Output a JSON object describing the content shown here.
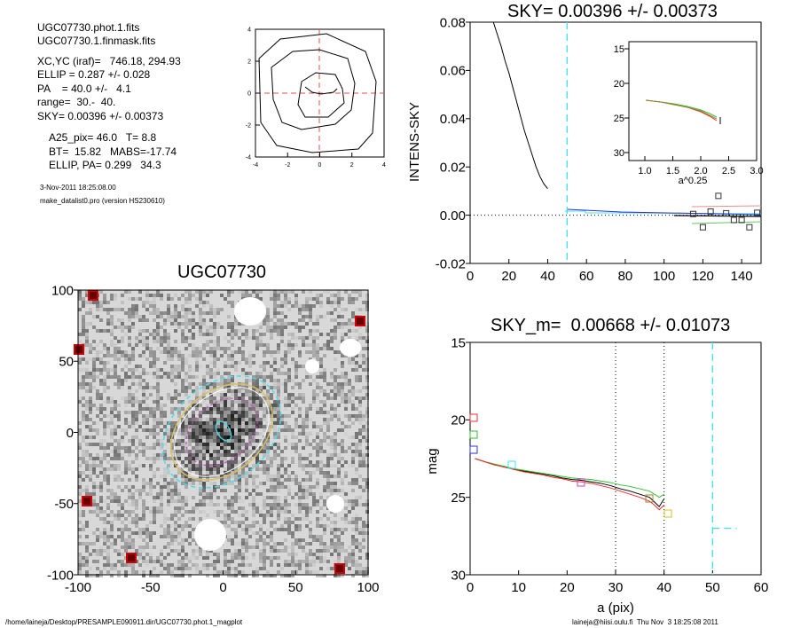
{
  "info": {
    "lines1": [
      "UGC07730.phot.1.fits",
      "UGC07730.1.finmask.fits"
    ],
    "lines2": [
      "XC,YC (iraf)=   746.18, 294.93",
      "ELLIP = 0.287 +/- 0.028",
      "PA    = 40.0 +/-   4.1",
      "range=  30.-  40.",
      "SKY= 0.00396 +/- 0.00373"
    ],
    "lines3": [
      "A25_pix= 46.0   T= 8.8",
      "BT=  15.82   MABS=-17.74",
      "ELLIP, PA= 0.299   34.3"
    ],
    "date": "3-Nov-2011 18:25:08.00",
    "version": "make_datalist0.pro (version HS230610)"
  },
  "footer": {
    "left": "/home/laineja/Desktop/PRESAMPLE090911.dir/UGC07730.phot.1_magplot",
    "right": "laineja@hiisi.oulu.fi  Thu Nov  3 18:25:08 2011"
  },
  "colors": {
    "cyan": "#40e0f0",
    "red": "#e83030",
    "green": "#30c030",
    "blue": "#3030c8",
    "magenta": "#d040c0",
    "yellow": "#d8c020",
    "olive": "#708040"
  },
  "chart_data": [
    {
      "type": "contour",
      "id": "center-contour",
      "x_ticks": [
        "-4",
        "-2",
        "0",
        "2",
        "4"
      ],
      "y_ticks": [
        "4",
        "2",
        "0",
        "-2",
        "-4"
      ],
      "xlim": [
        -4,
        4
      ],
      "ylim": [
        -4,
        4
      ]
    },
    {
      "type": "line",
      "id": "sky-profile",
      "title": "SKY= 0.00396 +/- 0.00373",
      "xlabel": "",
      "ylabel": "INTENS-SKY",
      "xlim": [
        0,
        150
      ],
      "ylim": [
        -0.02,
        0.08
      ],
      "x_ticks": [
        "0",
        "20",
        "40",
        "60",
        "80",
        "100",
        "120",
        "140"
      ],
      "y_ticks": [
        "0.08",
        "0.06",
        "0.04",
        "0.02",
        "0.00",
        "-0.02"
      ],
      "sky_radius": 50,
      "profile_x": [
        12,
        14,
        16,
        18,
        20,
        22,
        24,
        26,
        28,
        30,
        32,
        34,
        36,
        38,
        40
      ],
      "profile_y": [
        0.08,
        0.075,
        0.07,
        0.064,
        0.059,
        0.053,
        0.047,
        0.041,
        0.035,
        0.03,
        0.025,
        0.02,
        0.016,
        0.013,
        0.011
      ],
      "squares_x": [
        115,
        120,
        124,
        128,
        132,
        136,
        140,
        144,
        148
      ],
      "squares_y": [
        0.0005,
        -0.005,
        0.0015,
        0.008,
        0.0008,
        -0.002,
        -0.002,
        -0.005,
        0.001
      ],
      "inset": {
        "xlabel": "a^0.25",
        "xlim": [
          1.0,
          3.0
        ],
        "ylim": [
          15,
          30
        ],
        "x_ticks": [
          "1.0",
          "1.5",
          "2.0",
          "2.5",
          "3.0"
        ],
        "y_ticks": [
          "15",
          "20",
          "25",
          "30"
        ]
      }
    },
    {
      "type": "image",
      "id": "galaxy-image",
      "title": "UGC07730",
      "xlim": [
        -100,
        100
      ],
      "ylim": [
        -100,
        100
      ],
      "x_ticks": [
        "-100",
        "-50",
        "0",
        "50",
        "100"
      ],
      "y_ticks": [
        "100",
        "50",
        "0",
        "-50",
        "-100"
      ]
    },
    {
      "type": "line",
      "id": "mag-profile",
      "title": "SKY_m=  0.00668 +/- 0.01073",
      "xlabel": "a (pix)",
      "ylabel": "mag",
      "xlim": [
        0,
        60
      ],
      "ylim": [
        30,
        15
      ],
      "x_ticks": [
        "0",
        "10",
        "20",
        "30",
        "40",
        "50",
        "60"
      ],
      "y_ticks": [
        "15",
        "20",
        "25",
        "30"
      ],
      "range_lines": [
        30,
        40
      ],
      "sky_radius": 50,
      "sky_level_mag": 27.0,
      "series": [
        {
          "color": "black",
          "x": [
            1,
            3,
            5,
            7,
            9,
            11,
            13,
            15,
            17,
            19,
            21,
            23,
            25,
            27,
            29,
            31,
            33,
            35,
            37,
            38,
            39,
            40
          ],
          "y": [
            22.5,
            22.7,
            22.9,
            23.0,
            23.2,
            23.3,
            23.4,
            23.5,
            23.6,
            23.75,
            23.85,
            23.9,
            24.0,
            24.1,
            24.25,
            24.45,
            24.6,
            24.8,
            25.0,
            25.3,
            25.6,
            25.1
          ]
        },
        {
          "color": "green",
          "x": [
            1,
            3,
            5,
            7,
            9,
            11,
            13,
            15,
            17,
            19,
            21,
            23,
            25,
            27,
            29,
            31,
            33,
            35,
            37,
            38,
            39,
            40
          ],
          "y": [
            22.5,
            22.7,
            22.85,
            23.0,
            23.15,
            23.25,
            23.35,
            23.45,
            23.55,
            23.65,
            23.75,
            23.8,
            23.85,
            23.95,
            24.05,
            24.2,
            24.3,
            24.45,
            24.6,
            24.8,
            25.0,
            24.8
          ]
        },
        {
          "color": "red",
          "x": [
            1,
            3,
            5,
            7,
            9,
            11,
            13,
            15,
            17,
            19,
            21,
            23,
            25,
            27,
            29,
            31,
            33,
            35,
            37,
            38,
            39,
            40
          ],
          "y": [
            22.5,
            22.7,
            22.9,
            23.05,
            23.2,
            23.35,
            23.45,
            23.55,
            23.7,
            23.8,
            23.95,
            24.0,
            24.1,
            24.25,
            24.4,
            24.6,
            24.8,
            25.0,
            25.25,
            25.5,
            25.8,
            25.5
          ]
        }
      ]
    }
  ]
}
